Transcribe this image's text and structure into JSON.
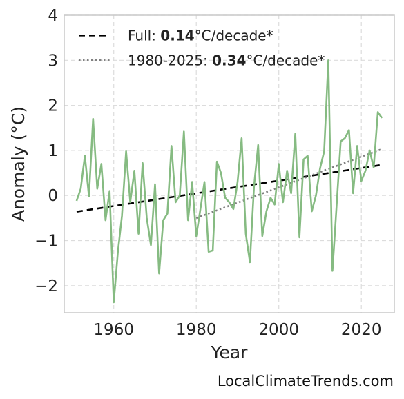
{
  "chart_data": {
    "type": "line",
    "xlabel": "Year",
    "ylabel": "Anomaly (°C)",
    "xlim": [
      1948,
      2028
    ],
    "ylim": [
      -2.6,
      4.0
    ],
    "x_ticks": [
      1960,
      1980,
      2000,
      2020
    ],
    "x_tick_labels": [
      "1960",
      "1980",
      "2000",
      "2020"
    ],
    "y_ticks": [
      -2,
      -1,
      0,
      1,
      2,
      3,
      4
    ],
    "y_tick_labels": [
      "−2",
      "−1",
      "0",
      "1",
      "2",
      "3",
      "4"
    ],
    "grid": true,
    "legend_placement": "top-left",
    "series": [
      {
        "kind": "annual-anomaly",
        "color": "#86bb82",
        "x": [
          1951,
          1952,
          1953,
          1954,
          1955,
          1956,
          1957,
          1958,
          1959,
          1960,
          1961,
          1962,
          1963,
          1964,
          1965,
          1966,
          1967,
          1968,
          1969,
          1970,
          1971,
          1972,
          1973,
          1974,
          1975,
          1976,
          1977,
          1978,
          1979,
          1980,
          1981,
          1982,
          1983,
          1984,
          1985,
          1986,
          1987,
          1988,
          1989,
          1990,
          1991,
          1992,
          1993,
          1994,
          1995,
          1996,
          1997,
          1998,
          1999,
          2000,
          2001,
          2002,
          2003,
          2004,
          2005,
          2006,
          2007,
          2008,
          2009,
          2010,
          2011,
          2012,
          2013,
          2014,
          2015,
          2016,
          2017,
          2018,
          2019,
          2020,
          2021,
          2022,
          2023,
          2024,
          2025
        ],
        "values": [
          -0.12,
          0.15,
          0.88,
          -0.02,
          1.7,
          0.15,
          0.7,
          -0.55,
          0.1,
          -2.37,
          -1.25,
          -0.45,
          0.98,
          -0.15,
          0.55,
          -0.85,
          0.72,
          -0.5,
          -1.1,
          0.25,
          -1.73,
          -0.55,
          -0.4,
          1.1,
          -0.15,
          0.0,
          1.42,
          -0.55,
          0.3,
          -0.9,
          -0.3,
          0.3,
          -1.25,
          -1.22,
          0.75,
          0.5,
          -0.05,
          -0.15,
          -0.3,
          0.3,
          1.27,
          -0.85,
          -1.48,
          0.2,
          1.12,
          -0.9,
          -0.35,
          -0.05,
          -0.2,
          0.7,
          -0.15,
          0.55,
          0.05,
          1.37,
          -0.93,
          0.8,
          0.88,
          -0.35,
          0.0,
          0.6,
          0.98,
          3.0,
          -1.67,
          -0.25,
          1.2,
          1.27,
          1.45,
          0.05,
          1.1,
          0.32,
          0.55,
          1.0,
          0.62,
          1.85,
          1.72
        ]
      }
    ],
    "trend_lines": [
      {
        "name": "Full",
        "rate": "0.14",
        "unit": "°C/decade*",
        "style": "dashed",
        "color": "#000000",
        "x": [
          1951,
          2025
        ],
        "values": [
          -0.36,
          0.68
        ]
      },
      {
        "name": "1980-2025",
        "rate": "0.34",
        "unit": "°C/decade*",
        "style": "dotted",
        "color": "#808080",
        "x": [
          1980,
          2025
        ],
        "values": [
          -0.5,
          1.03
        ]
      }
    ]
  },
  "legend": [
    {
      "label_prefix": "Full: ",
      "label_value": "0.14",
      "label_suffix": "°C/decade*"
    },
    {
      "label_prefix": "1980-2025: ",
      "label_value": "0.34",
      "label_suffix": "°C/decade*"
    }
  ],
  "watermark": "LocalClimateTrends.com"
}
